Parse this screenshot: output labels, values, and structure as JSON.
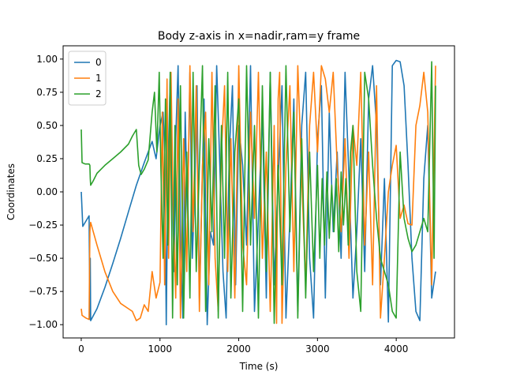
{
  "chart_data": {
    "type": "line",
    "title": "Body z-axis in x=nadir,ram=y frame",
    "xlabel": "Time (s)",
    "ylabel": "Coordinates",
    "xlim": [
      -230,
      4740
    ],
    "ylim": [
      -1.1,
      1.1
    ],
    "xticks": [
      0,
      1000,
      2000,
      3000,
      4000
    ],
    "yticks": [
      -1.0,
      -0.75,
      -0.5,
      -0.25,
      0.0,
      0.25,
      0.5,
      0.75,
      1.0
    ],
    "xtick_labels": [
      "0",
      "1000",
      "2000",
      "3000",
      "4000"
    ],
    "ytick_labels": [
      "−1.00",
      "−0.75",
      "−0.50",
      "−0.25",
      "0.00",
      "0.25",
      "0.50",
      "0.75",
      "1.00"
    ],
    "grid": false,
    "legend_position": "upper-left",
    "series": [
      {
        "name": "0",
        "color": "#1f77b4",
        "x": [
          0,
          20,
          60,
          100,
          110,
          115,
          120,
          200,
          300,
          400,
          500,
          600,
          700,
          800,
          850,
          900,
          950,
          1000,
          1040,
          1060,
          1080,
          1100,
          1130,
          1150,
          1180,
          1200,
          1230,
          1260,
          1290,
          1320,
          1350,
          1380,
          1410,
          1440,
          1470,
          1500,
          1530,
          1560,
          1600,
          1640,
          1680,
          1720,
          1760,
          1800,
          1840,
          1880,
          1920,
          1960,
          2000,
          2050,
          2100,
          2150,
          2200,
          2250,
          2300,
          2350,
          2400,
          2450,
          2500,
          2550,
          2600,
          2650,
          2700,
          2750,
          2800,
          2850,
          2900,
          2950,
          3000,
          3050,
          3100,
          3150,
          3200,
          3250,
          3300,
          3350,
          3400,
          3450,
          3500,
          3550,
          3600,
          3650,
          3700,
          3750,
          3800,
          3850,
          3900,
          3950,
          4000,
          4050,
          4100,
          4150,
          4200,
          4250,
          4300,
          4350,
          4400,
          4450,
          4500
        ],
        "values": [
          0.0,
          -0.26,
          -0.22,
          -0.18,
          -0.96,
          -0.5,
          -0.97,
          -0.88,
          -0.72,
          -0.54,
          -0.35,
          -0.15,
          0.05,
          0.22,
          0.3,
          0.38,
          0.25,
          0.5,
          0.6,
          0.3,
          -1.0,
          0.1,
          0.85,
          0.2,
          -0.6,
          0.4,
          0.95,
          -0.3,
          -0.95,
          0.6,
          -0.2,
          0.9,
          -0.5,
          0.0,
          0.8,
          -0.8,
          -0.1,
          0.7,
          -1.0,
          -0.3,
          -0.4,
          0.95,
          0.2,
          -0.6,
          -0.95,
          0.3,
          0.8,
          -0.7,
          0.5,
          0.2,
          -0.4,
          0.95,
          -0.9,
          -0.2,
          0.6,
          -0.8,
          0.9,
          -0.7,
          0.1,
          0.8,
          -0.95,
          -0.2,
          0.7,
          -0.9,
          0.5,
          0.9,
          -0.5,
          -0.95,
          0.4,
          0.8,
          -0.8,
          0.6,
          -0.3,
          0.3,
          -0.5,
          0.9,
          0.1,
          -0.8,
          -0.3,
          0.4,
          -0.6,
          0.7,
          0.95,
          0.5,
          -0.7,
          0.1,
          -0.98,
          0.95,
          0.99,
          0.98,
          0.8,
          0.2,
          -0.5,
          -0.9,
          -0.97,
          0.1,
          0.5,
          -0.8,
          -0.6
        ]
      },
      {
        "name": "1",
        "color": "#ff7f0e",
        "x": [
          0,
          10,
          60,
          100,
          110,
          115,
          120,
          200,
          300,
          400,
          500,
          600,
          650,
          700,
          750,
          800,
          850,
          900,
          950,
          1000,
          1030,
          1060,
          1090,
          1110,
          1140,
          1170,
          1200,
          1230,
          1260,
          1300,
          1340,
          1380,
          1420,
          1460,
          1500,
          1540,
          1580,
          1620,
          1660,
          1700,
          1740,
          1780,
          1820,
          1860,
          1900,
          1950,
          2000,
          2050,
          2100,
          2150,
          2200,
          2250,
          2300,
          2350,
          2400,
          2450,
          2480,
          2500,
          2520,
          2550,
          2600,
          2650,
          2700,
          2750,
          2800,
          2850,
          2900,
          2950,
          3000,
          3050,
          3100,
          3150,
          3200,
          3250,
          3300,
          3350,
          3400,
          3450,
          3500,
          3550,
          3600,
          3650,
          3700,
          3750,
          3800,
          3850,
          3900,
          3950,
          4000,
          4050,
          4100,
          4150,
          4200,
          4250,
          4300,
          4350,
          4400,
          4450,
          4500
        ],
        "values": [
          -0.88,
          -0.93,
          -0.95,
          -0.96,
          -0.3,
          -0.25,
          -0.23,
          -0.4,
          -0.6,
          -0.75,
          -0.84,
          -0.88,
          -0.9,
          -0.97,
          -0.95,
          -0.85,
          -0.9,
          -0.6,
          -0.8,
          -0.68,
          0.6,
          -0.7,
          0.85,
          -0.5,
          0.9,
          -0.2,
          -0.8,
          0.7,
          -0.95,
          0.4,
          -0.6,
          0.95,
          -0.3,
          0.8,
          -0.9,
          0.2,
          0.6,
          -0.7,
          0.9,
          -0.5,
          -0.9,
          0.3,
          0.8,
          -0.6,
          0.4,
          -0.8,
          0.95,
          -0.4,
          -0.7,
          0.6,
          -0.2,
          0.9,
          -0.5,
          0.3,
          -0.9,
          0.5,
          -0.99,
          0.7,
          0.9,
          -0.99,
          0.2,
          0.8,
          -0.6,
          0.95,
          0.1,
          -0.7,
          0.5,
          0.9,
          0.3,
          0.95,
          0.85,
          0.6,
          0.9,
          0.2,
          -0.3,
          0.4,
          -0.5,
          0.5,
          0.2,
          0.9,
          -0.4,
          0.3,
          -0.7,
          0.8,
          -0.95,
          -0.5,
          0.0,
          0.2,
          0.35,
          -0.2,
          -0.1,
          -0.24,
          -0.25,
          0.5,
          0.65,
          0.9,
          0.6,
          -0.7,
          0.95
        ]
      },
      {
        "name": "2",
        "color": "#2ca02c",
        "x": [
          0,
          10,
          50,
          100,
          110,
          115,
          120,
          150,
          200,
          300,
          400,
          500,
          600,
          650,
          700,
          730,
          760,
          800,
          850,
          900,
          930,
          960,
          990,
          1010,
          1040,
          1070,
          1100,
          1130,
          1160,
          1190,
          1220,
          1260,
          1300,
          1340,
          1380,
          1420,
          1460,
          1500,
          1540,
          1580,
          1620,
          1660,
          1700,
          1740,
          1780,
          1820,
          1860,
          1900,
          1950,
          2000,
          2050,
          2100,
          2150,
          2200,
          2250,
          2300,
          2350,
          2400,
          2450,
          2500,
          2550,
          2600,
          2650,
          2700,
          2750,
          2800,
          2850,
          2900,
          2950,
          3000,
          3030,
          3060,
          3090,
          3120,
          3150,
          3180,
          3210,
          3240,
          3270,
          3300,
          3330,
          3360,
          3390,
          3420,
          3450,
          3500,
          3550,
          3600,
          3650,
          3700,
          3750,
          3800,
          3850,
          3900,
          3950,
          4000,
          4050,
          4100,
          4150,
          4200,
          4250,
          4300,
          4350,
          4400,
          4450,
          4480,
          4500
        ],
        "values": [
          0.47,
          0.22,
          0.21,
          0.21,
          0.2,
          0.1,
          0.05,
          0.08,
          0.14,
          0.2,
          0.25,
          0.3,
          0.36,
          0.42,
          0.47,
          0.2,
          0.13,
          0.17,
          0.24,
          0.6,
          0.75,
          0.3,
          0.9,
          0.2,
          -0.5,
          0.7,
          -0.4,
          0.9,
          -0.95,
          0.5,
          -0.7,
          0.8,
          -0.95,
          0.3,
          -0.8,
          0.9,
          -0.6,
          0.2,
          0.95,
          -0.9,
          0.4,
          -0.3,
          0.8,
          -0.95,
          0.5,
          -0.5,
          0.9,
          -0.8,
          0.3,
          0.7,
          -0.9,
          0.95,
          -0.4,
          0.5,
          -0.95,
          0.8,
          -0.6,
          0.9,
          -0.99,
          0.2,
          -0.7,
          0.95,
          -0.3,
          0.6,
          -0.95,
          0.4,
          -0.8,
          0.3,
          -0.6,
          0.2,
          -0.5,
          0.1,
          -0.4,
          0.15,
          -0.35,
          0.05,
          -0.3,
          0.1,
          -0.45,
          0.15,
          -0.25,
          0.1,
          -0.4,
          0.3,
          0.5,
          -0.6,
          -0.9,
          0.9,
          0.7,
          0.2,
          -0.2,
          -0.5,
          -0.6,
          -0.7,
          -0.9,
          -0.95,
          0.3,
          -0.2,
          -0.35,
          -0.45,
          -0.4,
          -0.3,
          -0.2,
          -0.3,
          0.98,
          -0.5,
          0.8
        ]
      }
    ]
  }
}
